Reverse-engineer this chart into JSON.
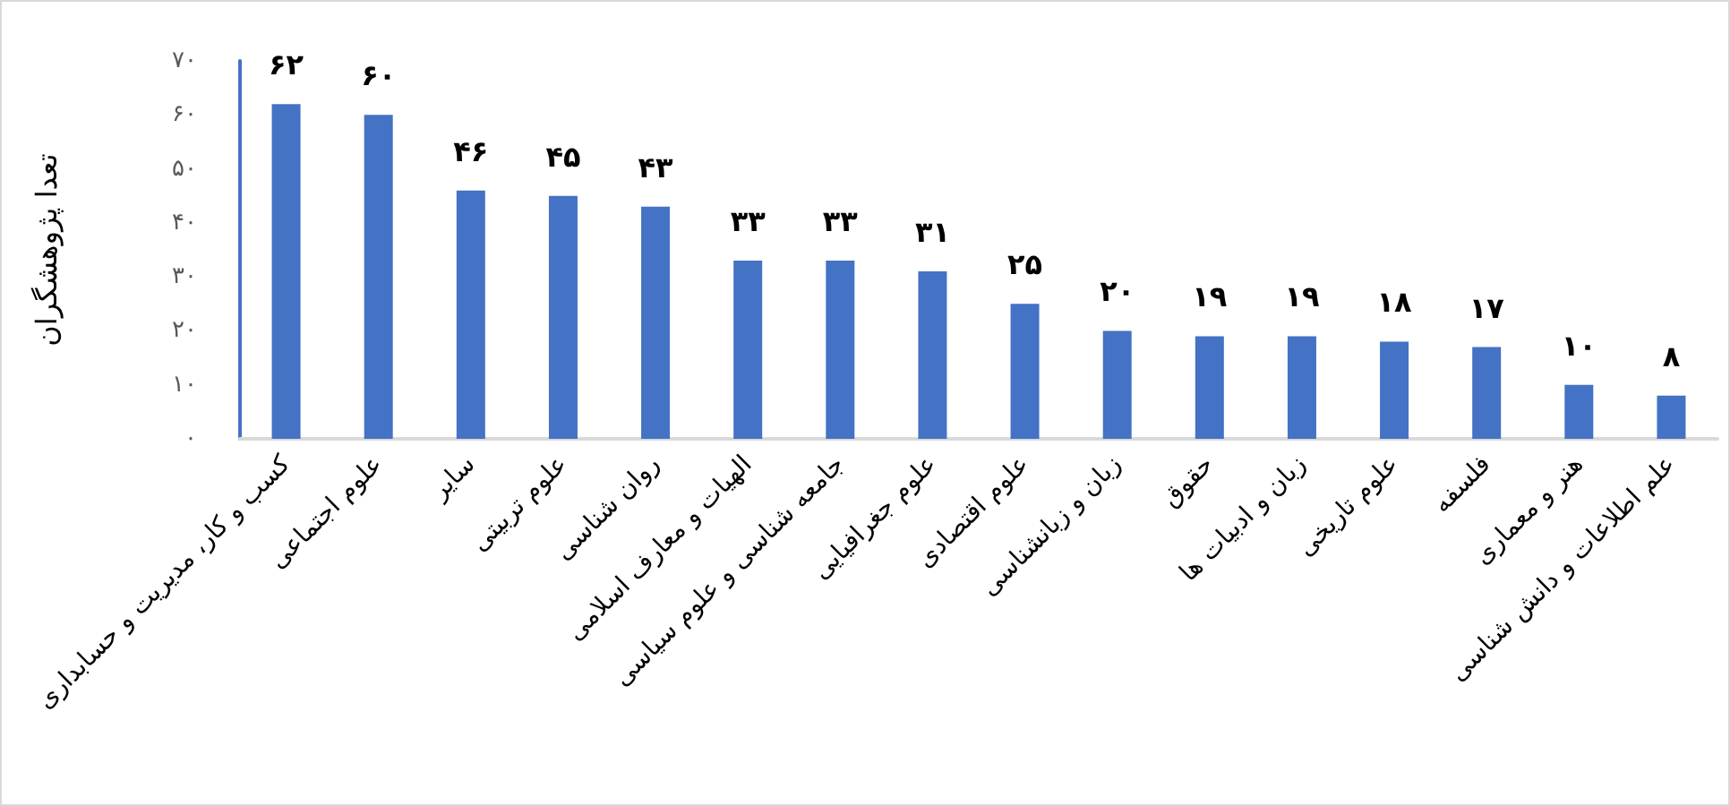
{
  "chart_data": {
    "type": "bar",
    "ylabel": "تعدا پژوهشگران",
    "categories": [
      "کسب و کار، مدیریت و حسابداری",
      "علوم اجتماعی",
      "سایر",
      "علوم تربیتی",
      "روان شناسی",
      "الهیات و معارف اسلامی",
      "جامعه شناسی و علوم سیاسی",
      "علوم جغرافیایی",
      "علوم اقتصادی",
      "زبان و زبانشناسی",
      "حقوق",
      "زبان و ادبیات ها",
      "علوم تاریخی",
      "فلسفه",
      "هنر و معماری",
      "علم اطلاعات و دانش شناسی"
    ],
    "values": [
      62,
      60,
      46,
      45,
      43,
      33,
      33,
      31,
      25,
      20,
      19,
      19,
      18,
      17,
      10,
      8
    ],
    "value_labels": [
      "۶۲",
      "۶۰",
      "۴۶",
      "۴۵",
      "۴۳",
      "۳۳",
      "۳۳",
      "۳۱",
      "۲۵",
      "۲۰",
      "۱۹",
      "۱۹",
      "۱۸",
      "۱۷",
      "۱۰",
      "۸"
    ],
    "color": "#4472c4",
    "ylim": [
      0,
      70
    ],
    "yticks": [
      {
        "value": 0,
        "label": "۰"
      },
      {
        "value": 10,
        "label": "۱۰"
      },
      {
        "value": 20,
        "label": "۲۰"
      },
      {
        "value": 30,
        "label": "۳۰"
      },
      {
        "value": 40,
        "label": "۴۰"
      },
      {
        "value": 50,
        "label": "۵۰"
      },
      {
        "value": 60,
        "label": "۶۰"
      },
      {
        "value": 70,
        "label": "۷۰"
      }
    ]
  }
}
